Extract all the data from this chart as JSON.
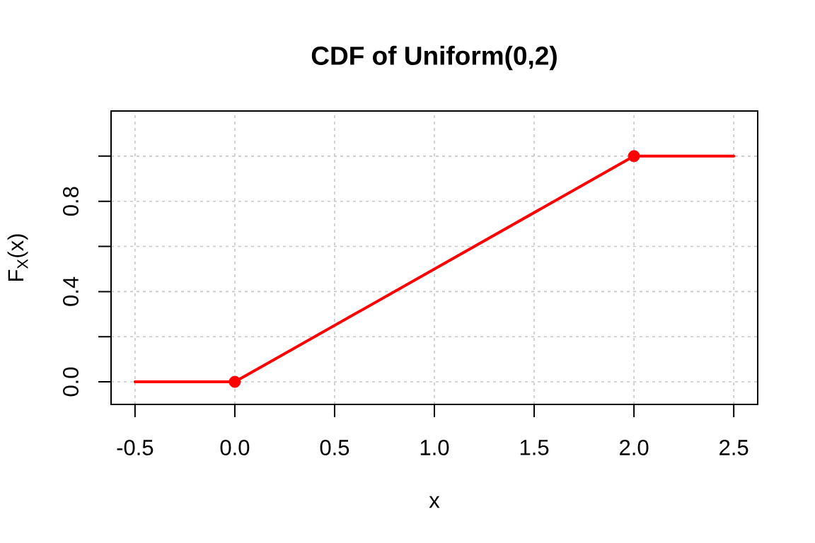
{
  "chart_data": {
    "type": "line",
    "title": "CDF of Uniform(0,2)",
    "xlabel": "x",
    "ylabel": "F$_{X}$(x)",
    "xlim": [
      -0.62,
      2.62
    ],
    "ylim": [
      -0.1,
      1.2
    ],
    "xticks": [
      -0.5,
      {
        "value": 0,
        "label": "0.0"
      },
      0.5,
      {
        "value": 1,
        "label": "1.0"
      },
      1.5,
      {
        "value": 2,
        "label": "2.0"
      },
      2.5
    ],
    "yticks": [
      {
        "value": 0,
        "label": "0.0"
      },
      {
        "value": 0.2,
        "label": null
      },
      0.4,
      {
        "value": 0.6,
        "label": null
      },
      0.8,
      {
        "value": 1,
        "label": null
      }
    ],
    "grid": true,
    "line_style": "solid",
    "marker": "circle",
    "series": [
      {
        "color": "#ff0000",
        "marker": "none",
        "x": [
          -0.5,
          0,
          2,
          2.5
        ],
        "values": [
          0,
          0,
          1,
          1
        ]
      },
      {
        "type": "scatter",
        "color": "#ff0000",
        "x": [
          0,
          2
        ],
        "values": [
          0,
          1
        ]
      }
    ]
  }
}
